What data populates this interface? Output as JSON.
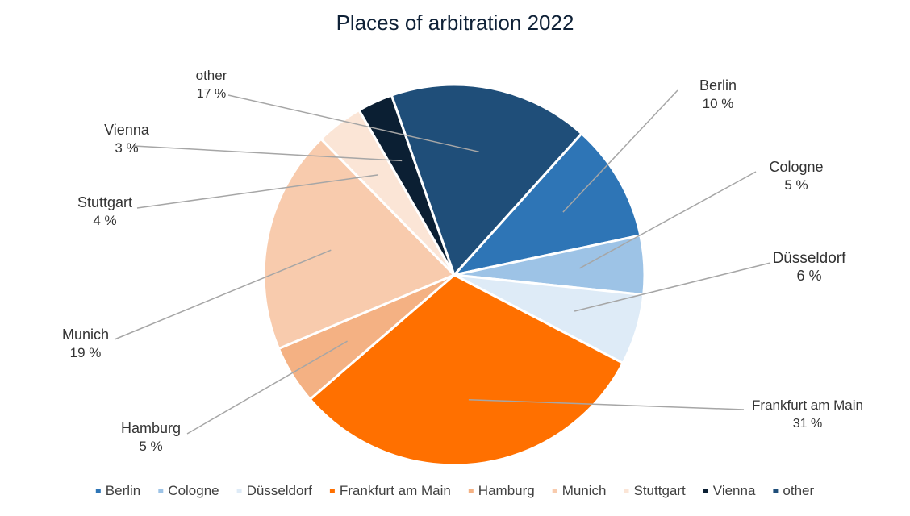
{
  "chart_data": {
    "type": "pie",
    "title": "Places of arbitration 2022",
    "slices": [
      {
        "name": "Berlin",
        "value": 10,
        "label": "10 %",
        "color": "#2e75b6"
      },
      {
        "name": "Cologne",
        "value": 5,
        "label": "5 %",
        "color": "#9dc3e6"
      },
      {
        "name": "Düsseldorf",
        "value": 6,
        "label": "6 %",
        "color": "#deebf7"
      },
      {
        "name": "Frankfurt am Main",
        "value": 31,
        "label": "31 %",
        "color": "#ff7000"
      },
      {
        "name": "Hamburg",
        "value": 5,
        "label": "5 %",
        "color": "#f4b183"
      },
      {
        "name": "Munich",
        "value": 19,
        "label": "19 %",
        "color": "#f8cbad"
      },
      {
        "name": "Stuttgart",
        "value": 4,
        "label": "4 %",
        "color": "#fbe5d6"
      },
      {
        "name": "Vienna",
        "value": 3,
        "label": "3 %",
        "color": "#0b1f33"
      },
      {
        "name": "other",
        "value": 17,
        "label": "17 %",
        "color": "#1f4e79"
      }
    ],
    "legend_position": "bottom"
  }
}
